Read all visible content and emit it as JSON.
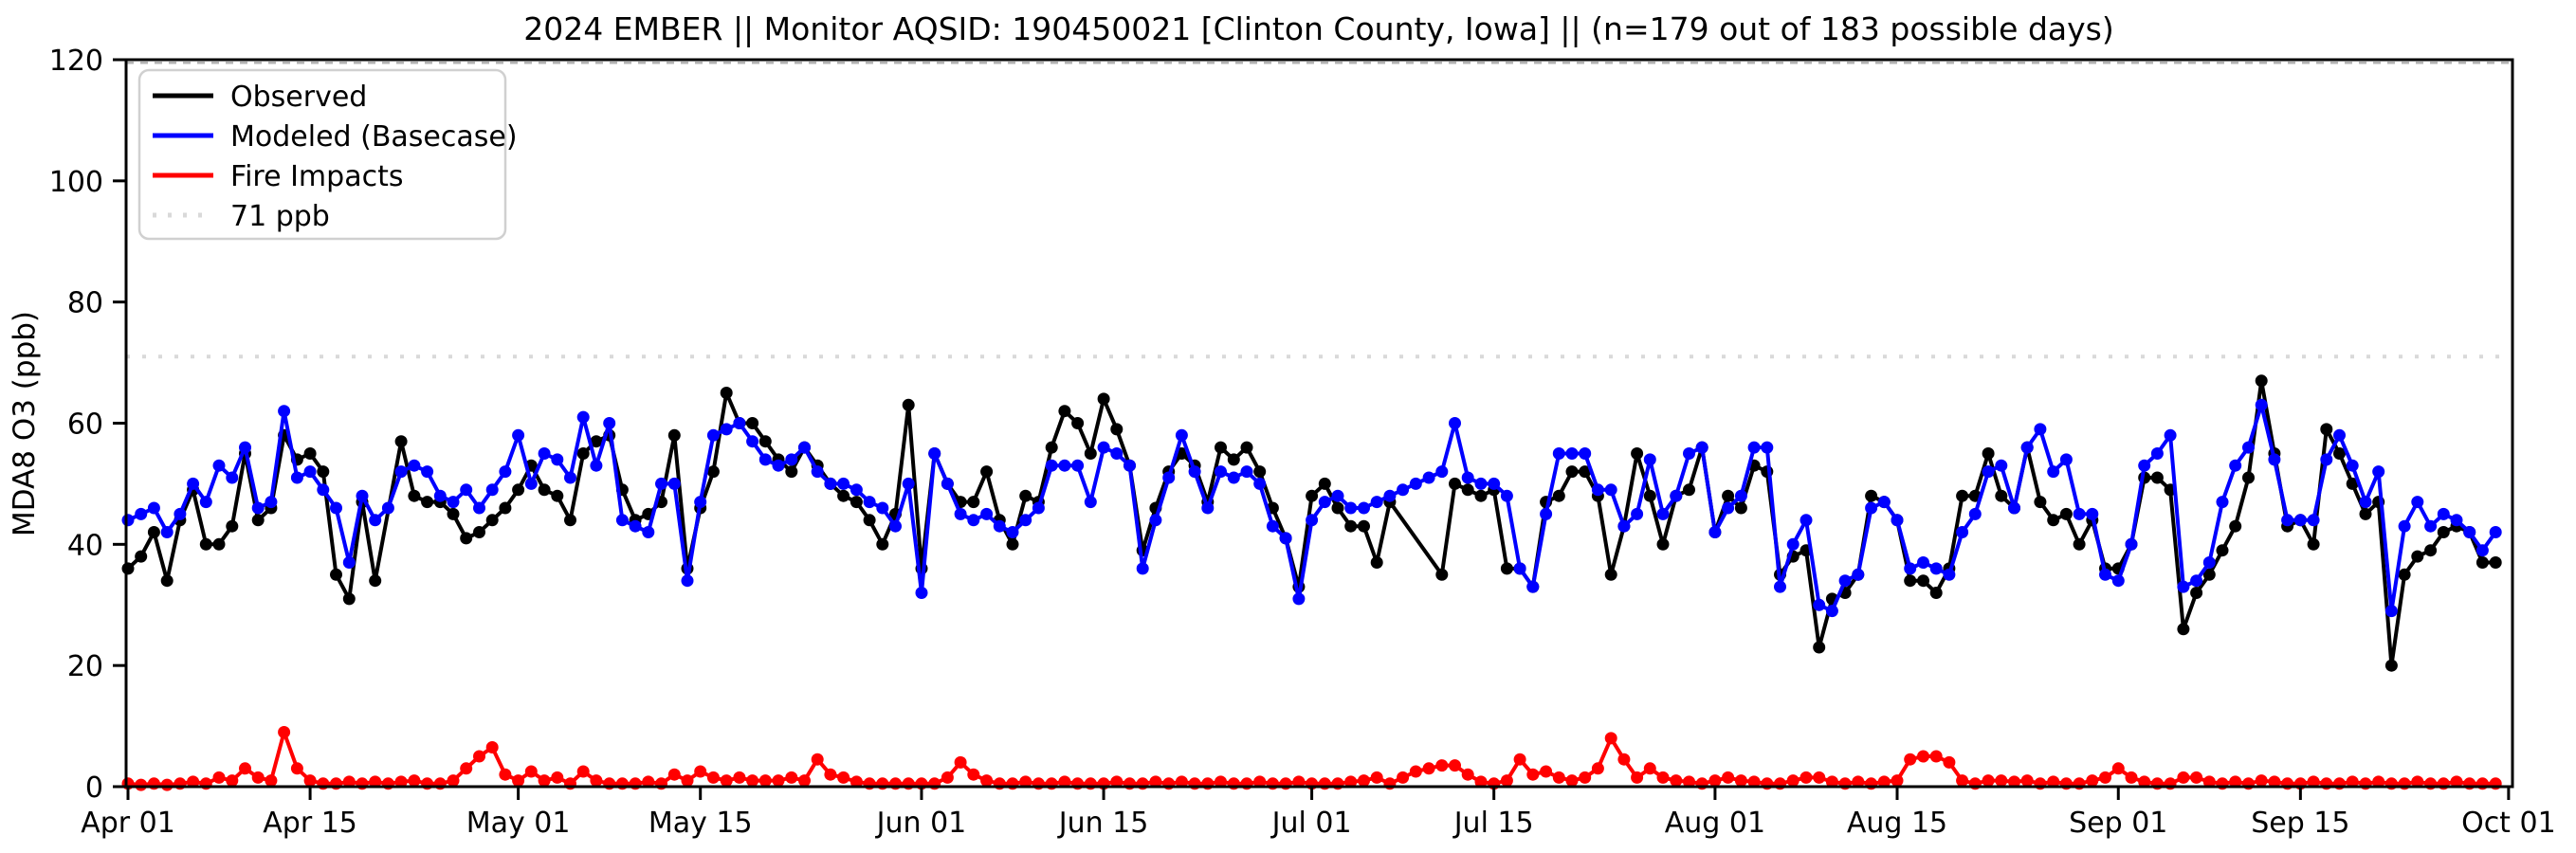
{
  "figure": {
    "title": "2024 EMBER || Monitor AQSID: 190450021 [Clinton County, Iowa] || (n=179 out of 183 possible days)",
    "background": "#ffffff"
  },
  "chart_data": {
    "type": "line",
    "title": "2024 EMBER || Monitor AQSID: 190450021 [Clinton County, Iowa] || (n=179 out of 183 possible days)",
    "xlabel": "",
    "ylabel": "MDA8 O3 (ppb)",
    "ylim": [
      0,
      120
    ],
    "yticks": [
      0,
      20,
      40,
      60,
      80,
      100,
      120
    ],
    "x_start_date": "2024-04-01",
    "x_end_date": "2024-10-01",
    "n_days": 183,
    "xtick_labels": [
      "Apr 01",
      "Apr 15",
      "May 01",
      "May 15",
      "Jun 01",
      "Jun 15",
      "Jul 01",
      "Jul 15",
      "Aug 01",
      "Aug 15",
      "Sep 01",
      "Sep 15",
      "Oct 01"
    ],
    "xtick_day_index": [
      1,
      15,
      31,
      45,
      62,
      76,
      92,
      106,
      123,
      137,
      154,
      168,
      184
    ],
    "grid": false,
    "legend_position": "upper-left",
    "threshold_line": {
      "value": 71,
      "label": "71 ppb",
      "color": "#d9d9d9",
      "style": "dotted"
    },
    "top_reference_line": {
      "value": 119.5,
      "color": "#b3b3b3",
      "style": "dashed"
    },
    "series": [
      {
        "name": "Observed",
        "color": "#000000",
        "marker": "circle",
        "values": [
          36,
          38,
          42,
          34,
          44,
          49,
          40,
          40,
          43,
          55,
          44,
          46,
          58,
          54,
          55,
          52,
          35,
          31,
          47,
          34,
          null,
          57,
          48,
          47,
          47,
          45,
          41,
          42,
          44,
          46,
          49,
          53,
          49,
          48,
          44,
          55,
          57,
          58,
          49,
          44,
          45,
          47,
          58,
          36,
          46,
          52,
          65,
          60,
          60,
          57,
          54,
          52,
          56,
          53,
          50,
          48,
          47,
          44,
          40,
          45,
          63,
          36,
          55,
          50,
          47,
          47,
          52,
          44,
          40,
          48,
          47,
          56,
          62,
          60,
          55,
          64,
          59,
          53,
          39,
          46,
          52,
          55,
          53,
          47,
          56,
          54,
          56,
          52,
          46,
          41,
          33,
          48,
          50,
          46,
          43,
          43,
          37,
          47,
          null,
          null,
          null,
          35,
          50,
          49,
          48,
          49,
          36,
          36,
          33,
          47,
          48,
          52,
          52,
          48,
          35,
          43,
          55,
          48,
          40,
          48,
          49,
          56,
          42,
          48,
          46,
          53,
          52,
          35,
          38,
          39,
          23,
          31,
          32,
          35,
          48,
          47,
          44,
          34,
          34,
          32,
          36,
          48,
          48,
          55,
          48,
          46,
          56,
          47,
          44,
          45,
          40,
          44,
          36,
          36,
          40,
          51,
          51,
          49,
          26,
          32,
          35,
          39,
          43,
          51,
          67,
          55,
          43,
          44,
          40,
          59,
          55,
          50,
          45,
          47,
          20,
          35,
          38,
          39,
          42,
          43,
          42,
          37,
          37
        ]
      },
      {
        "name": "Modeled (Basecase)",
        "color": "#0000ff",
        "marker": "circle",
        "values": [
          44,
          45,
          46,
          42,
          45,
          50,
          47,
          53,
          51,
          56,
          46,
          47,
          62,
          51,
          52,
          49,
          46,
          37,
          48,
          44,
          46,
          52,
          53,
          52,
          48,
          47,
          49,
          46,
          49,
          52,
          58,
          50,
          55,
          54,
          51,
          61,
          53,
          60,
          44,
          43,
          42,
          50,
          50,
          34,
          47,
          58,
          59,
          60,
          57,
          54,
          53,
          54,
          56,
          52,
          50,
          50,
          49,
          47,
          46,
          43,
          50,
          32,
          55,
          50,
          45,
          44,
          45,
          43,
          42,
          44,
          46,
          53,
          53,
          53,
          47,
          56,
          55,
          53,
          36,
          44,
          51,
          58,
          52,
          46,
          52,
          51,
          52,
          50,
          43,
          41,
          31,
          44,
          47,
          48,
          46,
          46,
          47,
          48,
          49,
          50,
          51,
          52,
          60,
          51,
          50,
          50,
          48,
          36,
          33,
          45,
          55,
          55,
          55,
          49,
          49,
          43,
          45,
          54,
          45,
          48,
          55,
          56,
          42,
          46,
          48,
          56,
          56,
          33,
          40,
          44,
          30,
          29,
          34,
          35,
          46,
          47,
          44,
          36,
          37,
          36,
          35,
          42,
          45,
          52,
          53,
          46,
          56,
          59,
          52,
          54,
          45,
          45,
          35,
          34,
          40,
          53,
          55,
          58,
          33,
          34,
          37,
          47,
          53,
          56,
          63,
          54,
          44,
          44,
          44,
          54,
          58,
          53,
          47,
          52,
          29,
          43,
          47,
          43,
          45,
          44,
          42,
          39,
          42
        ]
      },
      {
        "name": "Fire Impacts",
        "color": "#ff0000",
        "marker": "circle",
        "values": [
          0.5,
          0.3,
          0.5,
          0.3,
          0.5,
          0.8,
          0.5,
          1.5,
          1,
          3,
          1.5,
          1,
          9,
          3,
          1,
          0.5,
          0.5,
          0.8,
          0.5,
          0.8,
          0.5,
          0.8,
          1,
          0.5,
          0.5,
          1,
          3,
          5,
          6.5,
          2,
          1,
          2.5,
          1,
          1.5,
          0.5,
          2.5,
          1,
          0.5,
          0.5,
          0.5,
          0.8,
          0.5,
          2,
          1,
          2.5,
          1.5,
          1,
          1.5,
          1,
          1,
          1,
          1.5,
          1,
          4.5,
          2,
          1.5,
          0.8,
          0.5,
          0.5,
          0.5,
          0.5,
          0.5,
          0.5,
          1.5,
          4,
          2,
          1,
          0.5,
          0.5,
          0.8,
          0.5,
          0.5,
          0.8,
          0.5,
          0.5,
          0.5,
          0.8,
          0.5,
          0.5,
          0.8,
          0.5,
          0.8,
          0.5,
          0.5,
          0.8,
          0.5,
          0.5,
          0.8,
          0.5,
          0.5,
          0.8,
          0.5,
          0.5,
          0.5,
          0.8,
          1,
          1.5,
          0.5,
          1.5,
          2.5,
          3,
          3.5,
          3.5,
          2,
          0.8,
          0.5,
          1,
          4.5,
          2,
          2.5,
          1.5,
          1,
          1.5,
          3,
          8,
          4.5,
          1.5,
          3,
          1.5,
          1,
          0.8,
          0.5,
          1,
          1.5,
          1,
          0.8,
          0.5,
          0.5,
          1,
          1.5,
          1.5,
          0.8,
          0.5,
          0.8,
          0.5,
          0.8,
          1,
          4.5,
          5,
          5,
          4,
          1,
          0.5,
          1,
          1,
          0.8,
          1,
          0.5,
          0.8,
          0.5,
          0.5,
          1,
          1.5,
          3,
          1.5,
          0.8,
          0.5,
          0.5,
          1.5,
          1.5,
          0.8,
          0.5,
          0.8,
          0.5,
          1,
          0.8,
          0.5,
          0.5,
          0.8,
          0.5,
          0.5,
          0.8,
          0.5,
          0.8,
          0.5,
          0.5,
          0.8,
          0.5,
          0.5,
          0.8,
          0.5,
          0.5,
          0.5
        ]
      }
    ],
    "legend_entries": [
      {
        "label": "Observed",
        "color": "#000000",
        "style": "solid"
      },
      {
        "label": "Modeled (Basecase)",
        "color": "#0000ff",
        "style": "solid"
      },
      {
        "label": "Fire Impacts",
        "color": "#ff0000",
        "style": "solid"
      },
      {
        "label": "71 ppb",
        "color": "#d9d9d9",
        "style": "dotted"
      }
    ]
  }
}
